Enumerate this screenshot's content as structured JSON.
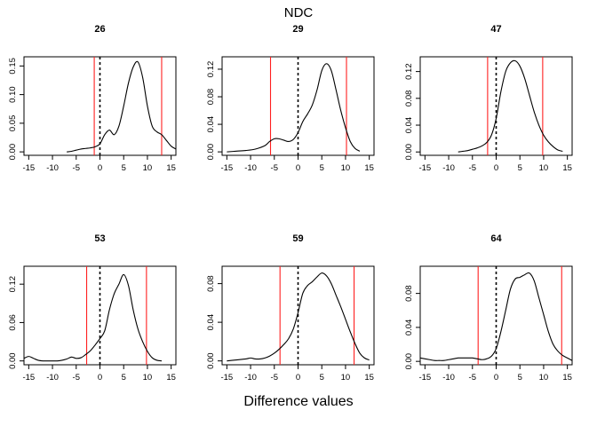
{
  "figure": {
    "title": "NDC",
    "xlabel": "Difference values"
  },
  "colors": {
    "curve": "#000000",
    "interval_lines": "#ff2020",
    "zero_line": "#000000"
  },
  "chart_data": [
    {
      "type": "line",
      "title": "26",
      "xlim": [
        -16,
        16
      ],
      "ylim": [
        -0.006,
        0.166
      ],
      "xticks": [
        -15,
        -10,
        -5,
        0,
        5,
        10,
        15
      ],
      "yticks": [
        0.0,
        0.05,
        0.1,
        0.15
      ],
      "ytick_labels": [
        "0.00",
        "0.05",
        "0.10",
        "0.15"
      ],
      "reference_line": 0,
      "interval_lines": [
        -1.2,
        13
      ],
      "series": [
        {
          "x": [
            -7,
            -6,
            -5,
            -4,
            -3,
            -2,
            -1,
            0,
            1,
            2,
            3,
            4,
            5,
            6,
            7,
            8,
            9,
            10,
            11,
            12,
            13,
            14,
            15,
            16
          ],
          "y": [
            0.0,
            0.001,
            0.003,
            0.005,
            0.006,
            0.007,
            0.009,
            0.014,
            0.03,
            0.038,
            0.03,
            0.045,
            0.08,
            0.12,
            0.148,
            0.157,
            0.13,
            0.08,
            0.045,
            0.035,
            0.03,
            0.02,
            0.01,
            0.005
          ]
        }
      ]
    },
    {
      "type": "line",
      "title": "29",
      "xlim": [
        -16,
        16
      ],
      "ylim": [
        -0.005,
        0.138
      ],
      "xticks": [
        -15,
        -10,
        -5,
        0,
        5,
        10,
        15
      ],
      "yticks": [
        0.0,
        0.04,
        0.08,
        0.12
      ],
      "ytick_labels": [
        "0.00",
        "0.04",
        "0.08",
        "0.12"
      ],
      "reference_line": 0,
      "interval_lines": [
        -5.8,
        10.2
      ],
      "series": [
        {
          "x": [
            -15,
            -13,
            -11,
            -9,
            -7,
            -6,
            -5,
            -4,
            -3,
            -2,
            -1,
            0,
            1,
            2,
            3,
            4,
            5,
            6,
            7,
            8,
            9,
            10,
            11,
            12,
            13
          ],
          "y": [
            0.0,
            0.001,
            0.002,
            0.004,
            0.009,
            0.015,
            0.019,
            0.019,
            0.017,
            0.015,
            0.018,
            0.028,
            0.044,
            0.055,
            0.068,
            0.09,
            0.118,
            0.128,
            0.118,
            0.09,
            0.06,
            0.035,
            0.015,
            0.005,
            0.001
          ]
        }
      ]
    },
    {
      "type": "line",
      "title": "47",
      "xlim": [
        -16,
        16
      ],
      "ylim": [
        -0.005,
        0.142
      ],
      "xticks": [
        -15,
        -10,
        -5,
        0,
        5,
        10,
        15
      ],
      "yticks": [
        0.0,
        0.04,
        0.08,
        0.12
      ],
      "ytick_labels": [
        "0.00",
        "0.04",
        "0.08",
        "0.12"
      ],
      "reference_line": 0,
      "interval_lines": [
        -1.8,
        9.8
      ],
      "series": [
        {
          "x": [
            -8,
            -7,
            -6,
            -5,
            -4,
            -3,
            -2,
            -1,
            0,
            1,
            2,
            3,
            4,
            5,
            6,
            7,
            8,
            9,
            10,
            11,
            12,
            13,
            14
          ],
          "y": [
            0.0,
            0.001,
            0.002,
            0.004,
            0.006,
            0.009,
            0.014,
            0.025,
            0.05,
            0.09,
            0.12,
            0.133,
            0.136,
            0.128,
            0.11,
            0.085,
            0.06,
            0.04,
            0.025,
            0.015,
            0.008,
            0.003,
            0.001
          ]
        }
      ]
    },
    {
      "type": "line",
      "title": "53",
      "xlim": [
        -16,
        16
      ],
      "ylim": [
        -0.006,
        0.148
      ],
      "xticks": [
        -15,
        -10,
        -5,
        0,
        5,
        10,
        15
      ],
      "yticks": [
        0.0,
        0.06,
        0.12
      ],
      "ytick_labels": [
        "0.00",
        "0.06",
        "0.12"
      ],
      "reference_line": 0,
      "interval_lines": [
        -2.8,
        9.8
      ],
      "series": [
        {
          "x": [
            -16,
            -15,
            -14,
            -13,
            -12,
            -11,
            -10,
            -9,
            -8,
            -7,
            -6,
            -5,
            -4,
            -3,
            -2,
            -1,
            0,
            1,
            2,
            3,
            4,
            5,
            6,
            7,
            8,
            9,
            10,
            11,
            12,
            13
          ],
          "y": [
            0.004,
            0.007,
            0.004,
            0.001,
            0.0,
            0.0,
            0.0,
            0.0,
            0.001,
            0.003,
            0.006,
            0.004,
            0.005,
            0.01,
            0.016,
            0.025,
            0.035,
            0.047,
            0.08,
            0.105,
            0.12,
            0.135,
            0.118,
            0.08,
            0.05,
            0.03,
            0.015,
            0.005,
            0.001,
            0.0
          ]
        }
      ]
    },
    {
      "type": "line",
      "title": "59",
      "xlim": [
        -16,
        16
      ],
      "ylim": [
        -0.004,
        0.098
      ],
      "xticks": [
        -15,
        -10,
        -5,
        0,
        5,
        10,
        15
      ],
      "yticks": [
        0.0,
        0.04,
        0.08
      ],
      "ytick_labels": [
        "0.00",
        "0.04",
        "0.08"
      ],
      "reference_line": 0,
      "interval_lines": [
        -3.8,
        11.8
      ],
      "series": [
        {
          "x": [
            -15,
            -13,
            -11,
            -10,
            -9,
            -8,
            -7,
            -6,
            -5,
            -4,
            -3,
            -2,
            -1,
            0,
            1,
            2,
            3,
            4,
            5,
            6,
            7,
            8,
            9,
            10,
            11,
            12,
            13,
            14,
            15
          ],
          "y": [
            0.0,
            0.001,
            0.002,
            0.003,
            0.002,
            0.002,
            0.003,
            0.005,
            0.008,
            0.012,
            0.017,
            0.023,
            0.033,
            0.05,
            0.07,
            0.078,
            0.082,
            0.087,
            0.091,
            0.088,
            0.08,
            0.068,
            0.056,
            0.043,
            0.03,
            0.018,
            0.008,
            0.003,
            0.001
          ]
        }
      ]
    },
    {
      "type": "line",
      "title": "64",
      "xlim": [
        -16,
        16
      ],
      "ylim": [
        -0.004,
        0.112
      ],
      "xticks": [
        -15,
        -10,
        -5,
        0,
        5,
        10,
        15
      ],
      "yticks": [
        0.0,
        0.04,
        0.08
      ],
      "ytick_labels": [
        "0.00",
        "0.04",
        "0.08"
      ],
      "reference_line": 0,
      "interval_lines": [
        -3.8,
        13.8
      ],
      "series": [
        {
          "x": [
            -16,
            -15,
            -14,
            -13,
            -12,
            -11,
            -10,
            -9,
            -8,
            -7,
            -6,
            -5,
            -4,
            -3,
            -2,
            -1,
            0,
            1,
            2,
            3,
            4,
            5,
            6,
            7,
            8,
            9,
            10,
            11,
            12,
            13,
            14,
            15,
            16
          ],
          "y": [
            0.004,
            0.003,
            0.002,
            0.001,
            0.001,
            0.001,
            0.002,
            0.003,
            0.004,
            0.004,
            0.004,
            0.004,
            0.003,
            0.002,
            0.003,
            0.006,
            0.015,
            0.035,
            0.06,
            0.085,
            0.097,
            0.099,
            0.102,
            0.104,
            0.095,
            0.075,
            0.055,
            0.035,
            0.02,
            0.012,
            0.007,
            0.004,
            0.001
          ]
        }
      ]
    }
  ]
}
